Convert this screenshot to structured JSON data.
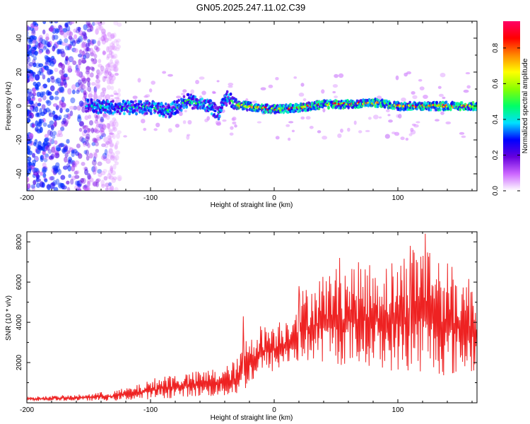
{
  "figure_title": "GN05.2025.247.11.02.C39",
  "chart_data": [
    {
      "type": "heatmap",
      "title": "GN05.2025.247.11.02.C39",
      "xlabel": "Height of straight line (km)",
      "ylabel": "Frequency (Hz)",
      "xlim": [
        -200,
        164
      ],
      "ylim": [
        -50,
        50
      ],
      "x_ticks": [
        -200,
        -100,
        0,
        100
      ],
      "x_tick_labels": [
        "-200",
        "-100",
        "0",
        "100"
      ],
      "y_ticks": [
        -40,
        -20,
        0,
        20,
        40
      ],
      "y_tick_labels": [
        "-40",
        "-20",
        "0",
        "20",
        "40"
      ],
      "ridge_frequency_hz": [
        {
          "x": -150,
          "f": 0
        },
        {
          "x": -120,
          "f": -1
        },
        {
          "x": -100,
          "f": -1
        },
        {
          "x": -85,
          "f": -3
        },
        {
          "x": -70,
          "f": 3
        },
        {
          "x": -55,
          "f": 1
        },
        {
          "x": -45,
          "f": -4
        },
        {
          "x": -38,
          "f": 5
        },
        {
          "x": -30,
          "f": 1
        },
        {
          "x": -15,
          "f": -1
        },
        {
          "x": 0,
          "f": -2
        },
        {
          "x": 20,
          "f": -1
        },
        {
          "x": 40,
          "f": 1
        },
        {
          "x": 60,
          "f": 1
        },
        {
          "x": 80,
          "f": 2
        },
        {
          "x": 100,
          "f": 0
        },
        {
          "x": 120,
          "f": 0
        },
        {
          "x": 140,
          "f": 0
        },
        {
          "x": 164,
          "f": 0
        }
      ],
      "noise_region_x": [
        -200,
        -150
      ],
      "colorbar": {
        "label": "Normalized spectral amplitude",
        "range": [
          0,
          0.95
        ],
        "ticks": [
          0.0,
          0.2,
          0.4,
          0.6,
          0.8
        ],
        "tick_labels": [
          "0.0",
          "0.2",
          "0.4",
          "0.6",
          "0.8"
        ],
        "colors": [
          "#ffffff",
          "#cc66ff",
          "#6600dd",
          "#0000ff",
          "#00e0ff",
          "#00ff66",
          "#88ff00",
          "#ffff00",
          "#ff8800",
          "#ff0000",
          "#ff0066"
        ]
      }
    },
    {
      "type": "line",
      "xlabel": "Height of straight line (km)",
      "ylabel": "SNR (10 * v/v)",
      "xlim": [
        -200,
        164
      ],
      "ylim": [
        0,
        8500
      ],
      "x_ticks": [
        -200,
        -100,
        0,
        100
      ],
      "x_tick_labels": [
        "-200",
        "-100",
        "0",
        "100"
      ],
      "y_ticks": [
        2000,
        4000,
        6000,
        8000
      ],
      "y_tick_labels": [
        "2000",
        "4000",
        "6000",
        "8000"
      ],
      "line_color": "#ee2222",
      "envelope": [
        {
          "x": -200,
          "low": 100,
          "high": 300
        },
        {
          "x": -160,
          "low": 100,
          "high": 400
        },
        {
          "x": -130,
          "low": 100,
          "high": 600
        },
        {
          "x": -110,
          "low": 150,
          "high": 900
        },
        {
          "x": -90,
          "low": 200,
          "high": 1400
        },
        {
          "x": -70,
          "low": 300,
          "high": 1500
        },
        {
          "x": -50,
          "low": 300,
          "high": 1700
        },
        {
          "x": -40,
          "low": 300,
          "high": 1800
        },
        {
          "x": -30,
          "low": 400,
          "high": 2200
        },
        {
          "x": -25,
          "low": 600,
          "high": 2900
        },
        {
          "x": -20,
          "low": 800,
          "high": 3600
        },
        {
          "x": -10,
          "low": 1500,
          "high": 3900
        },
        {
          "x": 0,
          "low": 1500,
          "high": 4100
        },
        {
          "x": 10,
          "low": 1800,
          "high": 4300
        },
        {
          "x": 20,
          "low": 2000,
          "high": 5500
        },
        {
          "x": 40,
          "low": 2000,
          "high": 6500
        },
        {
          "x": 60,
          "low": 1800,
          "high": 7000
        },
        {
          "x": 80,
          "low": 1800,
          "high": 7000
        },
        {
          "x": 100,
          "low": 1500,
          "high": 7200
        },
        {
          "x": 120,
          "low": 1500,
          "high": 8400
        },
        {
          "x": 140,
          "low": 1300,
          "high": 7000
        },
        {
          "x": 164,
          "low": 1500,
          "high": 6200
        }
      ],
      "notable_peaks": [
        {
          "x": -25,
          "y": 4300
        },
        {
          "x": 20,
          "y": 5800
        },
        {
          "x": 53,
          "y": 7200
        },
        {
          "x": 110,
          "y": 7800
        },
        {
          "x": 122,
          "y": 8400
        }
      ]
    }
  ]
}
